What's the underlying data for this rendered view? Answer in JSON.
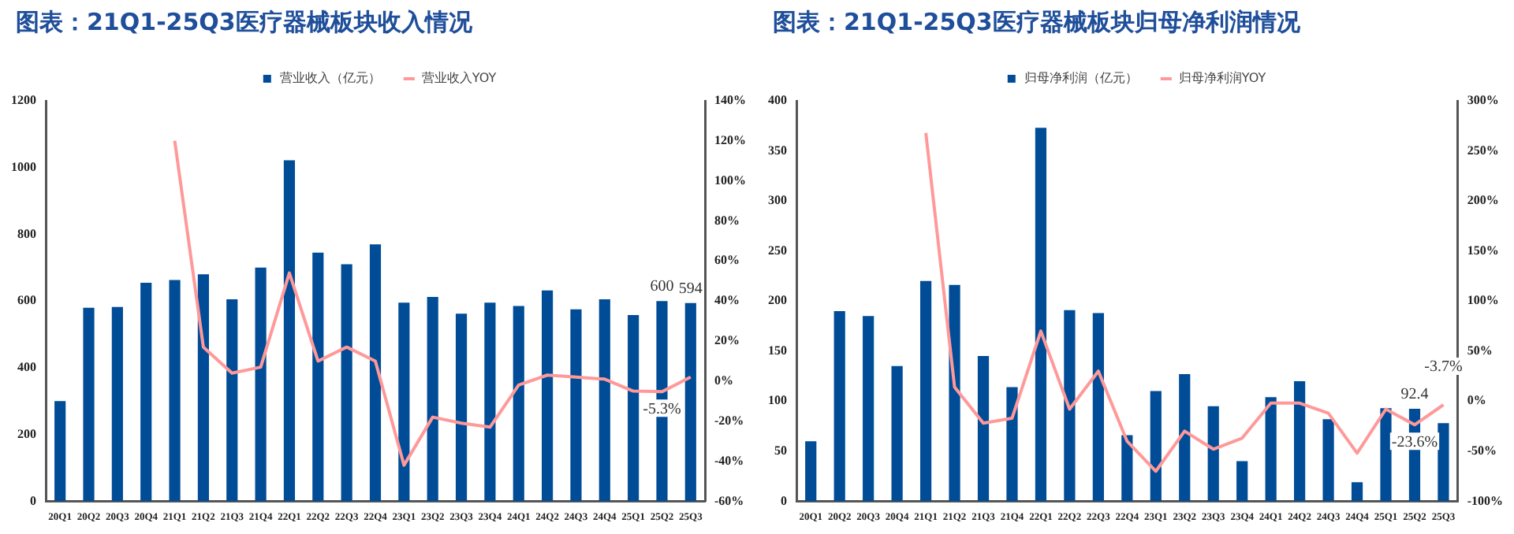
{
  "chart_data": [
    {
      "type": "bar",
      "title": "图表：21Q1-25Q3医疗器械板块收入情况",
      "categories": [
        "20Q1",
        "20Q2",
        "20Q3",
        "20Q4",
        "21Q1",
        "21Q2",
        "21Q3",
        "21Q4",
        "22Q1",
        "22Q2",
        "22Q3",
        "22Q4",
        "23Q1",
        "23Q2",
        "23Q3",
        "23Q4",
        "24Q1",
        "24Q2",
        "24Q3",
        "24Q4",
        "25Q1",
        "25Q2",
        "25Q3"
      ],
      "series": [
        {
          "name": "营业收入（亿元）",
          "color": "#004c97",
          "values": [
            300,
            580,
            582,
            655,
            663,
            680,
            605,
            700,
            1022,
            745,
            710,
            770,
            595,
            612,
            562,
            595,
            585,
            632,
            575,
            605,
            558,
            600,
            594
          ],
          "value_labels": [
            null,
            null,
            null,
            null,
            null,
            null,
            null,
            null,
            null,
            null,
            null,
            null,
            null,
            null,
            null,
            null,
            null,
            null,
            null,
            null,
            null,
            "600",
            "594"
          ]
        },
        {
          "name": "营业收入YOY",
          "type": "line",
          "axis": "y2",
          "color": "#ff9999",
          "values": [
            null,
            null,
            null,
            null,
            120,
            17,
            4,
            7,
            54,
            10,
            17,
            10,
            -42,
            -18,
            -21,
            -23,
            -2,
            3,
            2,
            1,
            -5,
            -5.3,
            2
          ],
          "value_labels": [
            null,
            null,
            null,
            null,
            null,
            null,
            null,
            null,
            null,
            null,
            null,
            null,
            null,
            null,
            null,
            null,
            null,
            null,
            null,
            null,
            null,
            "-5.3%",
            null
          ]
        }
      ],
      "ylim": [
        0,
        1200
      ],
      "yticks": [
        0,
        200,
        400,
        600,
        800,
        1000,
        1200
      ],
      "y2lim": [
        -60,
        140
      ],
      "y2ticks": [
        {
          "value": -60,
          "label": "-60%"
        },
        {
          "value": -40,
          "label": "-40%"
        },
        {
          "value": -20,
          "label": "-20%"
        },
        {
          "value": 0,
          "label": "0%"
        },
        {
          "value": 20,
          "label": "20%"
        },
        {
          "value": 40,
          "label": "40%"
        },
        {
          "value": 60,
          "label": "60%"
        },
        {
          "value": 80,
          "label": "80%"
        },
        {
          "value": 100,
          "label": "100%"
        },
        {
          "value": 120,
          "label": "120%"
        },
        {
          "value": 140,
          "label": "140%"
        }
      ],
      "legend": "top",
      "grid": false,
      "marker": "none"
    },
    {
      "type": "bar",
      "title": "图表：21Q1-25Q3医疗器械板块归母净利润情况",
      "categories": [
        "20Q1",
        "20Q2",
        "20Q3",
        "20Q4",
        "21Q1",
        "21Q2",
        "21Q3",
        "21Q4",
        "22Q1",
        "22Q2",
        "22Q3",
        "22Q4",
        "23Q1",
        "23Q2",
        "23Q3",
        "23Q4",
        "24Q1",
        "24Q2",
        "24Q3",
        "24Q4",
        "25Q1",
        "25Q2",
        "25Q3"
      ],
      "series": [
        {
          "name": "归母净利润（亿元）",
          "color": "#004c97",
          "values": [
            60,
            190,
            185,
            135,
            220,
            216,
            145,
            114,
            373,
            191,
            188,
            66,
            110,
            127,
            95,
            40,
            104,
            120,
            82,
            19,
            93,
            92.4,
            78
          ],
          "value_labels": [
            null,
            null,
            null,
            null,
            null,
            null,
            null,
            null,
            null,
            null,
            null,
            null,
            null,
            null,
            null,
            null,
            null,
            null,
            null,
            null,
            null,
            "92.4",
            null
          ]
        },
        {
          "name": "归母净利润YOY",
          "type": "line",
          "axis": "y2",
          "color": "#ff9999",
          "values": [
            null,
            null,
            null,
            null,
            268,
            14,
            -22,
            -17,
            70,
            -8,
            30,
            -40,
            -70,
            -30,
            -48,
            -37,
            -2,
            -2,
            -12,
            -52,
            -8,
            -23.6,
            -3.7
          ],
          "value_labels": [
            null,
            null,
            null,
            null,
            null,
            null,
            null,
            null,
            null,
            null,
            null,
            null,
            null,
            null,
            null,
            null,
            null,
            null,
            null,
            null,
            null,
            "-23.6%",
            "-3.7%"
          ]
        }
      ],
      "ylim": [
        0,
        400
      ],
      "yticks": [
        0,
        50,
        100,
        150,
        200,
        250,
        300,
        350,
        400
      ],
      "y2lim": [
        -100,
        300
      ],
      "y2ticks": [
        {
          "value": -100,
          "label": "-100%"
        },
        {
          "value": -50,
          "label": "-50%"
        },
        {
          "value": 0,
          "label": "0%"
        },
        {
          "value": 50,
          "label": "50%"
        },
        {
          "value": 100,
          "label": "100%"
        },
        {
          "value": 150,
          "label": "150%"
        },
        {
          "value": 200,
          "label": "200%"
        },
        {
          "value": 250,
          "label": "250%"
        },
        {
          "value": 300,
          "label": "300%"
        }
      ],
      "legend": "top",
      "grid": false,
      "marker": "none"
    }
  ]
}
